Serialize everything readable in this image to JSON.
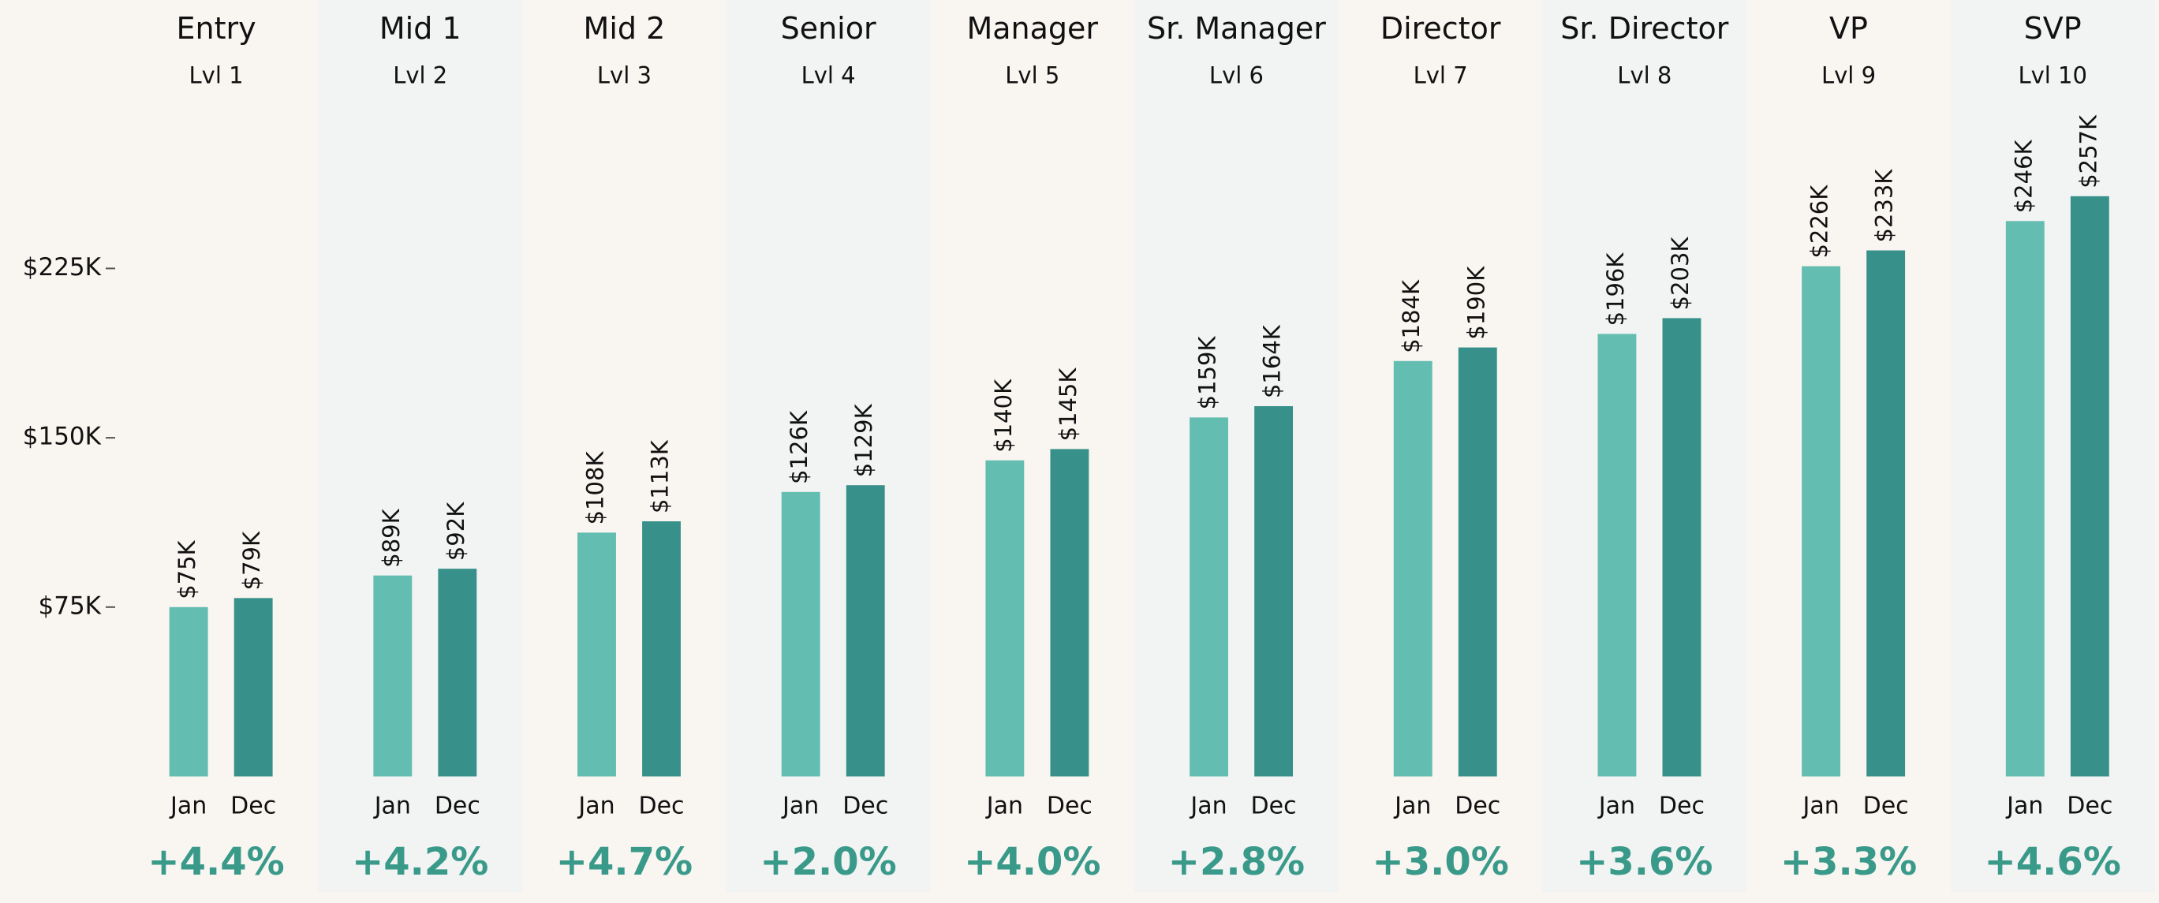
{
  "chart_data": {
    "type": "bar",
    "categories": [
      "Entry",
      "Mid 1",
      "Mid 2",
      "Senior",
      "Manager",
      "Sr. Manager",
      "Director",
      "Sr. Director",
      "VP",
      "SVP"
    ],
    "levels": [
      "Lvl 1",
      "Lvl 2",
      "Lvl 3",
      "Lvl 4",
      "Lvl 5",
      "Lvl 6",
      "Lvl 7",
      "Lvl 8",
      "Lvl 9",
      "Lvl 10"
    ],
    "series": [
      {
        "name": "Jan",
        "color": "#63bdb0",
        "values": [
          75000,
          89000,
          108000,
          126000,
          140000,
          159000,
          184000,
          196000,
          226000,
          246000
        ],
        "value_labels": [
          "$75K",
          "$89K",
          "$108K",
          "$126K",
          "$140K",
          "$159K",
          "$184K",
          "$196K",
          "$226K",
          "$246K"
        ]
      },
      {
        "name": "Dec",
        "color": "#37918a",
        "values": [
          79000,
          92000,
          113000,
          129000,
          145000,
          164000,
          190000,
          203000,
          233000,
          257000
        ],
        "value_labels": [
          "$79K",
          "$92K",
          "$113K",
          "$129K",
          "$145K",
          "$164K",
          "$190K",
          "$203K",
          "$233K",
          "$257K"
        ]
      }
    ],
    "changes": [
      "+4.4%",
      "+4.2%",
      "+4.7%",
      "+2.0%",
      "+4.0%",
      "+2.8%",
      "+3.0%",
      "+3.6%",
      "+3.3%",
      "+4.6%"
    ],
    "change_color": "#3a9a8a",
    "ylim": [
      0,
      300000
    ],
    "yticks": [
      {
        "value": 75000,
        "label": "$75K"
      },
      {
        "value": 150000,
        "label": "$150K"
      },
      {
        "value": 225000,
        "label": "$225K"
      }
    ],
    "background": "#f9f5f1",
    "band_color": "#f2f3f3"
  }
}
